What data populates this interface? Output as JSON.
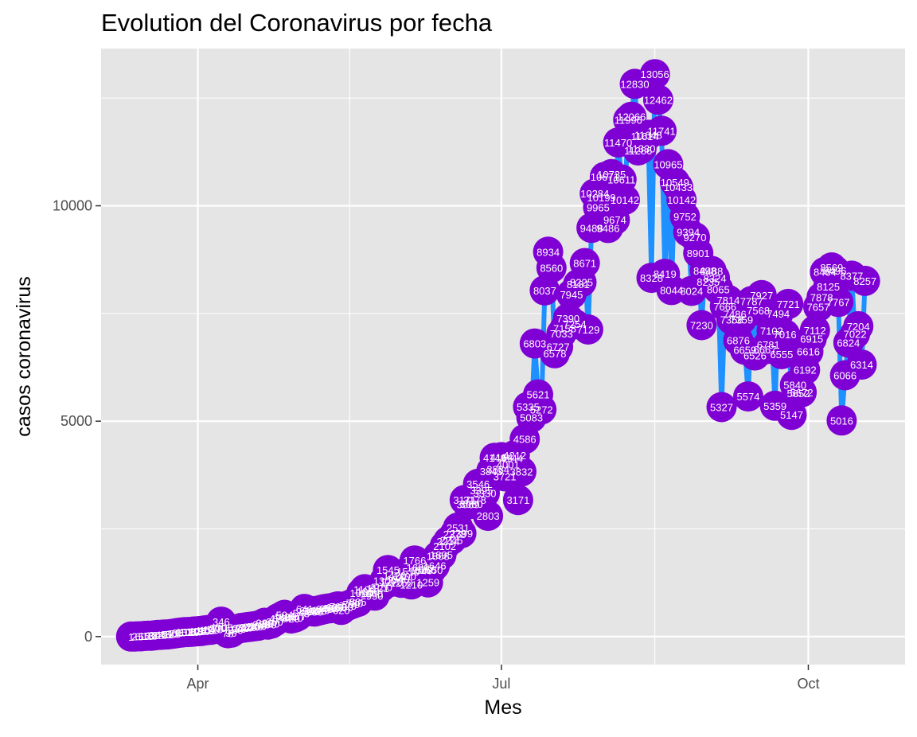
{
  "colors": {
    "panel_bg": "#e5e5e5",
    "grid": "#ffffff",
    "line": "#1e90ff",
    "point": "#7f00d4",
    "label": "#ffffff",
    "axis_text": "#4d4d4d",
    "title_text": "#000000"
  },
  "chart_data": {
    "type": "line",
    "title": "Evolution del Coronavirus por fecha",
    "xlabel": "Mes",
    "ylabel": "casos coronavirus",
    "x_ticks": [
      {
        "date": "2020-04-01",
        "label": "Apr"
      },
      {
        "date": "2020-07-01",
        "label": "Jul"
      },
      {
        "date": "2020-10-01",
        "label": "Oct"
      }
    ],
    "y_ticks": [
      {
        "value": 0,
        "label": "0"
      },
      {
        "value": 5000,
        "label": "5000"
      },
      {
        "value": 10000,
        "label": "10000"
      }
    ],
    "xlim": [
      "2020-03-03",
      "2020-10-30"
    ],
    "ylim": [
      -650,
      13650
    ],
    "grid": true,
    "legend": "none",
    "series": [
      {
        "points": [
          [
            "2020-03-12",
            1
          ],
          [
            "2020-03-13",
            2
          ],
          [
            "2020-03-14",
            6
          ],
          [
            "2020-03-15",
            5
          ],
          [
            "2020-03-16",
            15
          ],
          [
            "2020-03-17",
            18
          ],
          [
            "2020-03-18",
            21
          ],
          [
            "2020-03-19",
            30
          ],
          [
            "2020-03-20",
            38
          ],
          [
            "2020-03-21",
            41
          ],
          [
            "2020-03-22",
            48
          ],
          [
            "2020-03-23",
            51
          ],
          [
            "2020-03-24",
            60
          ],
          [
            "2020-03-25",
            71
          ],
          [
            "2020-03-26",
            85
          ],
          [
            "2020-03-27",
            95
          ],
          [
            "2020-03-28",
            103
          ],
          [
            "2020-03-29",
            105
          ],
          [
            "2020-03-30",
            110
          ],
          [
            "2020-03-31",
            118
          ],
          [
            "2020-04-01",
            125
          ],
          [
            "2020-04-02",
            130
          ],
          [
            "2020-04-03",
            142
          ],
          [
            "2020-04-04",
            151
          ],
          [
            "2020-04-05",
            160
          ],
          [
            "2020-04-06",
            175
          ],
          [
            "2020-04-07",
            200
          ],
          [
            "2020-04-08",
            346
          ],
          [
            "2020-04-09",
            205
          ],
          [
            "2020-04-10",
            78
          ],
          [
            "2020-04-11",
            90
          ],
          [
            "2020-04-12",
            150
          ],
          [
            "2020-04-13",
            180
          ],
          [
            "2020-04-14",
            200
          ],
          [
            "2020-04-15",
            210
          ],
          [
            "2020-04-16",
            220
          ],
          [
            "2020-04-17",
            230
          ],
          [
            "2020-04-18",
            240
          ],
          [
            "2020-04-19",
            250
          ],
          [
            "2020-04-20",
            280
          ],
          [
            "2020-04-21",
            320
          ],
          [
            "2020-04-22",
            280
          ],
          [
            "2020-04-23",
            300
          ],
          [
            "2020-04-24",
            350
          ],
          [
            "2020-04-25",
            420
          ],
          [
            "2020-04-26",
            460
          ],
          [
            "2020-04-27",
            504
          ],
          [
            "2020-04-28",
            450
          ],
          [
            "2020-04-29",
            420
          ],
          [
            "2020-04-30",
            440
          ],
          [
            "2020-05-01",
            477
          ],
          [
            "2020-05-02",
            545
          ],
          [
            "2020-05-03",
            641
          ],
          [
            "2020-05-04",
            610
          ],
          [
            "2020-05-05",
            590
          ],
          [
            "2020-05-06",
            580
          ],
          [
            "2020-05-07",
            600
          ],
          [
            "2020-05-08",
            620
          ],
          [
            "2020-05-09",
            640
          ],
          [
            "2020-05-10",
            650
          ],
          [
            "2020-05-11",
            660
          ],
          [
            "2020-05-12",
            680
          ],
          [
            "2020-05-13",
            700
          ],
          [
            "2020-05-14",
            620
          ],
          [
            "2020-05-15",
            680
          ],
          [
            "2020-05-16",
            720
          ],
          [
            "2020-05-17",
            750
          ],
          [
            "2020-05-18",
            780
          ],
          [
            "2020-05-19",
            805
          ],
          [
            "2020-05-20",
            1010
          ],
          [
            "2020-05-21",
            1100
          ],
          [
            "2020-05-22",
            1050
          ],
          [
            "2020-05-23",
            1000
          ],
          [
            "2020-05-24",
            950
          ],
          [
            "2020-05-25",
            1121
          ],
          [
            "2020-05-26",
            1150
          ],
          [
            "2020-05-27",
            1300
          ],
          [
            "2020-05-28",
            1545
          ],
          [
            "2020-05-29",
            1270
          ],
          [
            "2020-05-30",
            1420
          ],
          [
            "2020-05-31",
            1340
          ],
          [
            "2020-06-01",
            1250
          ],
          [
            "2020-06-02",
            1400
          ],
          [
            "2020-06-03",
            1510
          ],
          [
            "2020-06-04",
            1210
          ],
          [
            "2020-06-05",
            1766
          ],
          [
            "2020-06-06",
            1600
          ],
          [
            "2020-06-07",
            1540
          ],
          [
            "2020-06-08",
            1560
          ],
          [
            "2020-06-09",
            1259
          ],
          [
            "2020-06-10",
            1550
          ],
          [
            "2020-06-11",
            1646
          ],
          [
            "2020-06-12",
            1868
          ],
          [
            "2020-06-13",
            1895
          ],
          [
            "2020-06-14",
            2102
          ],
          [
            "2020-06-15",
            2214
          ],
          [
            "2020-06-16",
            2245
          ],
          [
            "2020-06-17",
            2378
          ],
          [
            "2020-06-18",
            2531
          ],
          [
            "2020-06-19",
            2399
          ],
          [
            "2020-06-20",
            3171
          ],
          [
            "2020-06-21",
            3069
          ],
          [
            "2020-06-22",
            3080
          ],
          [
            "2020-06-23",
            3178
          ],
          [
            "2020-06-24",
            3546
          ],
          [
            "2020-06-25",
            3395
          ],
          [
            "2020-06-26",
            3330
          ],
          [
            "2020-06-27",
            2803
          ],
          [
            "2020-06-28",
            3843
          ],
          [
            "2020-06-29",
            4149
          ],
          [
            "2020-06-30",
            3884
          ],
          [
            "2020-07-01",
            4164
          ],
          [
            "2020-07-02",
            3721
          ],
          [
            "2020-07-03",
            4001
          ],
          [
            "2020-07-04",
            4144
          ],
          [
            "2020-07-05",
            4212
          ],
          [
            "2020-07-06",
            3171
          ],
          [
            "2020-07-07",
            3832
          ],
          [
            "2020-07-08",
            4586
          ],
          [
            "2020-07-09",
            5335
          ],
          [
            "2020-07-10",
            5083
          ],
          [
            "2020-07-11",
            6803
          ],
          [
            "2020-07-12",
            5621
          ],
          [
            "2020-07-13",
            5272
          ],
          [
            "2020-07-14",
            8037
          ],
          [
            "2020-07-15",
            8934
          ],
          [
            "2020-07-16",
            8560
          ],
          [
            "2020-07-17",
            6578
          ],
          [
            "2020-07-18",
            6727
          ],
          [
            "2020-07-19",
            7033
          ],
          [
            "2020-07-20",
            7158
          ],
          [
            "2020-07-21",
            7390
          ],
          [
            "2020-07-22",
            7945
          ],
          [
            "2020-07-23",
            7254
          ],
          [
            "2020-07-24",
            8181
          ],
          [
            "2020-07-25",
            8225
          ],
          [
            "2020-07-26",
            8671
          ],
          [
            "2020-07-27",
            7129
          ],
          [
            "2020-07-28",
            9488
          ],
          [
            "2020-07-29",
            10284
          ],
          [
            "2020-07-30",
            9965
          ],
          [
            "2020-07-31",
            10199
          ],
          [
            "2020-08-01",
            10671
          ],
          [
            "2020-08-02",
            9486
          ],
          [
            "2020-08-03",
            10735
          ],
          [
            "2020-08-04",
            9674
          ],
          [
            "2020-08-05",
            11470
          ],
          [
            "2020-08-06",
            10611
          ],
          [
            "2020-08-07",
            10142
          ],
          [
            "2020-08-08",
            11996
          ],
          [
            "2020-08-09",
            12066
          ],
          [
            "2020-08-10",
            12830
          ],
          [
            "2020-08-11",
            11286
          ],
          [
            "2020-08-12",
            11330
          ],
          [
            "2020-08-13",
            11614
          ],
          [
            "2020-08-14",
            11648
          ],
          [
            "2020-08-15",
            8328
          ],
          [
            "2020-08-16",
            13056
          ],
          [
            "2020-08-17",
            12462
          ],
          [
            "2020-08-18",
            11741
          ],
          [
            "2020-08-19",
            8419
          ],
          [
            "2020-08-20",
            10965
          ],
          [
            "2020-08-21",
            8044
          ],
          [
            "2020-08-22",
            10549
          ],
          [
            "2020-08-23",
            10433
          ],
          [
            "2020-08-24",
            10142
          ],
          [
            "2020-08-25",
            9752
          ],
          [
            "2020-08-26",
            9394
          ],
          [
            "2020-08-27",
            8024
          ],
          [
            "2020-08-28",
            9270
          ],
          [
            "2020-08-29",
            8901
          ],
          [
            "2020-08-30",
            7230
          ],
          [
            "2020-08-31",
            8498
          ],
          [
            "2020-09-01",
            8235
          ],
          [
            "2020-09-02",
            8488
          ],
          [
            "2020-09-03",
            8324
          ],
          [
            "2020-09-04",
            8065
          ],
          [
            "2020-09-05",
            5327
          ],
          [
            "2020-09-06",
            7666
          ],
          [
            "2020-09-07",
            7814
          ],
          [
            "2020-09-08",
            7358
          ],
          [
            "2020-09-09",
            7486
          ],
          [
            "2020-09-10",
            6876
          ],
          [
            "2020-09-11",
            7359
          ],
          [
            "2020-09-12",
            6659
          ],
          [
            "2020-09-13",
            5574
          ],
          [
            "2020-09-14",
            7787
          ],
          [
            "2020-09-15",
            6526
          ],
          [
            "2020-09-16",
            7568
          ],
          [
            "2020-09-17",
            7927
          ],
          [
            "2020-09-18",
            6667
          ],
          [
            "2020-09-19",
            6781
          ],
          [
            "2020-09-20",
            7102
          ],
          [
            "2020-09-21",
            5359
          ],
          [
            "2020-09-22",
            7494
          ],
          [
            "2020-09-23",
            6555
          ],
          [
            "2020-09-24",
            7016
          ],
          [
            "2020-09-25",
            7721
          ],
          [
            "2020-09-26",
            5147
          ],
          [
            "2020-09-27",
            5840
          ],
          [
            "2020-09-28",
            5652
          ],
          [
            "2020-09-29",
            5672
          ],
          [
            "2020-09-30",
            6192
          ],
          [
            "2020-10-01",
            6616
          ],
          [
            "2020-10-02",
            6915
          ],
          [
            "2020-10-03",
            7112
          ],
          [
            "2020-10-04",
            7657
          ],
          [
            "2020-10-05",
            7878
          ],
          [
            "2020-10-06",
            8464
          ],
          [
            "2020-10-07",
            8125
          ],
          [
            "2020-10-08",
            8569
          ],
          [
            "2020-10-09",
            8496
          ],
          [
            "2020-10-10",
            7767
          ],
          [
            "2020-10-11",
            5016
          ],
          [
            "2020-10-12",
            6066
          ],
          [
            "2020-10-13",
            6824
          ],
          [
            "2020-10-14",
            8377
          ],
          [
            "2020-10-15",
            7022
          ],
          [
            "2020-10-16",
            7204
          ],
          [
            "2020-10-17",
            6314
          ],
          [
            "2020-10-18",
            8257
          ]
        ]
      }
    ]
  }
}
